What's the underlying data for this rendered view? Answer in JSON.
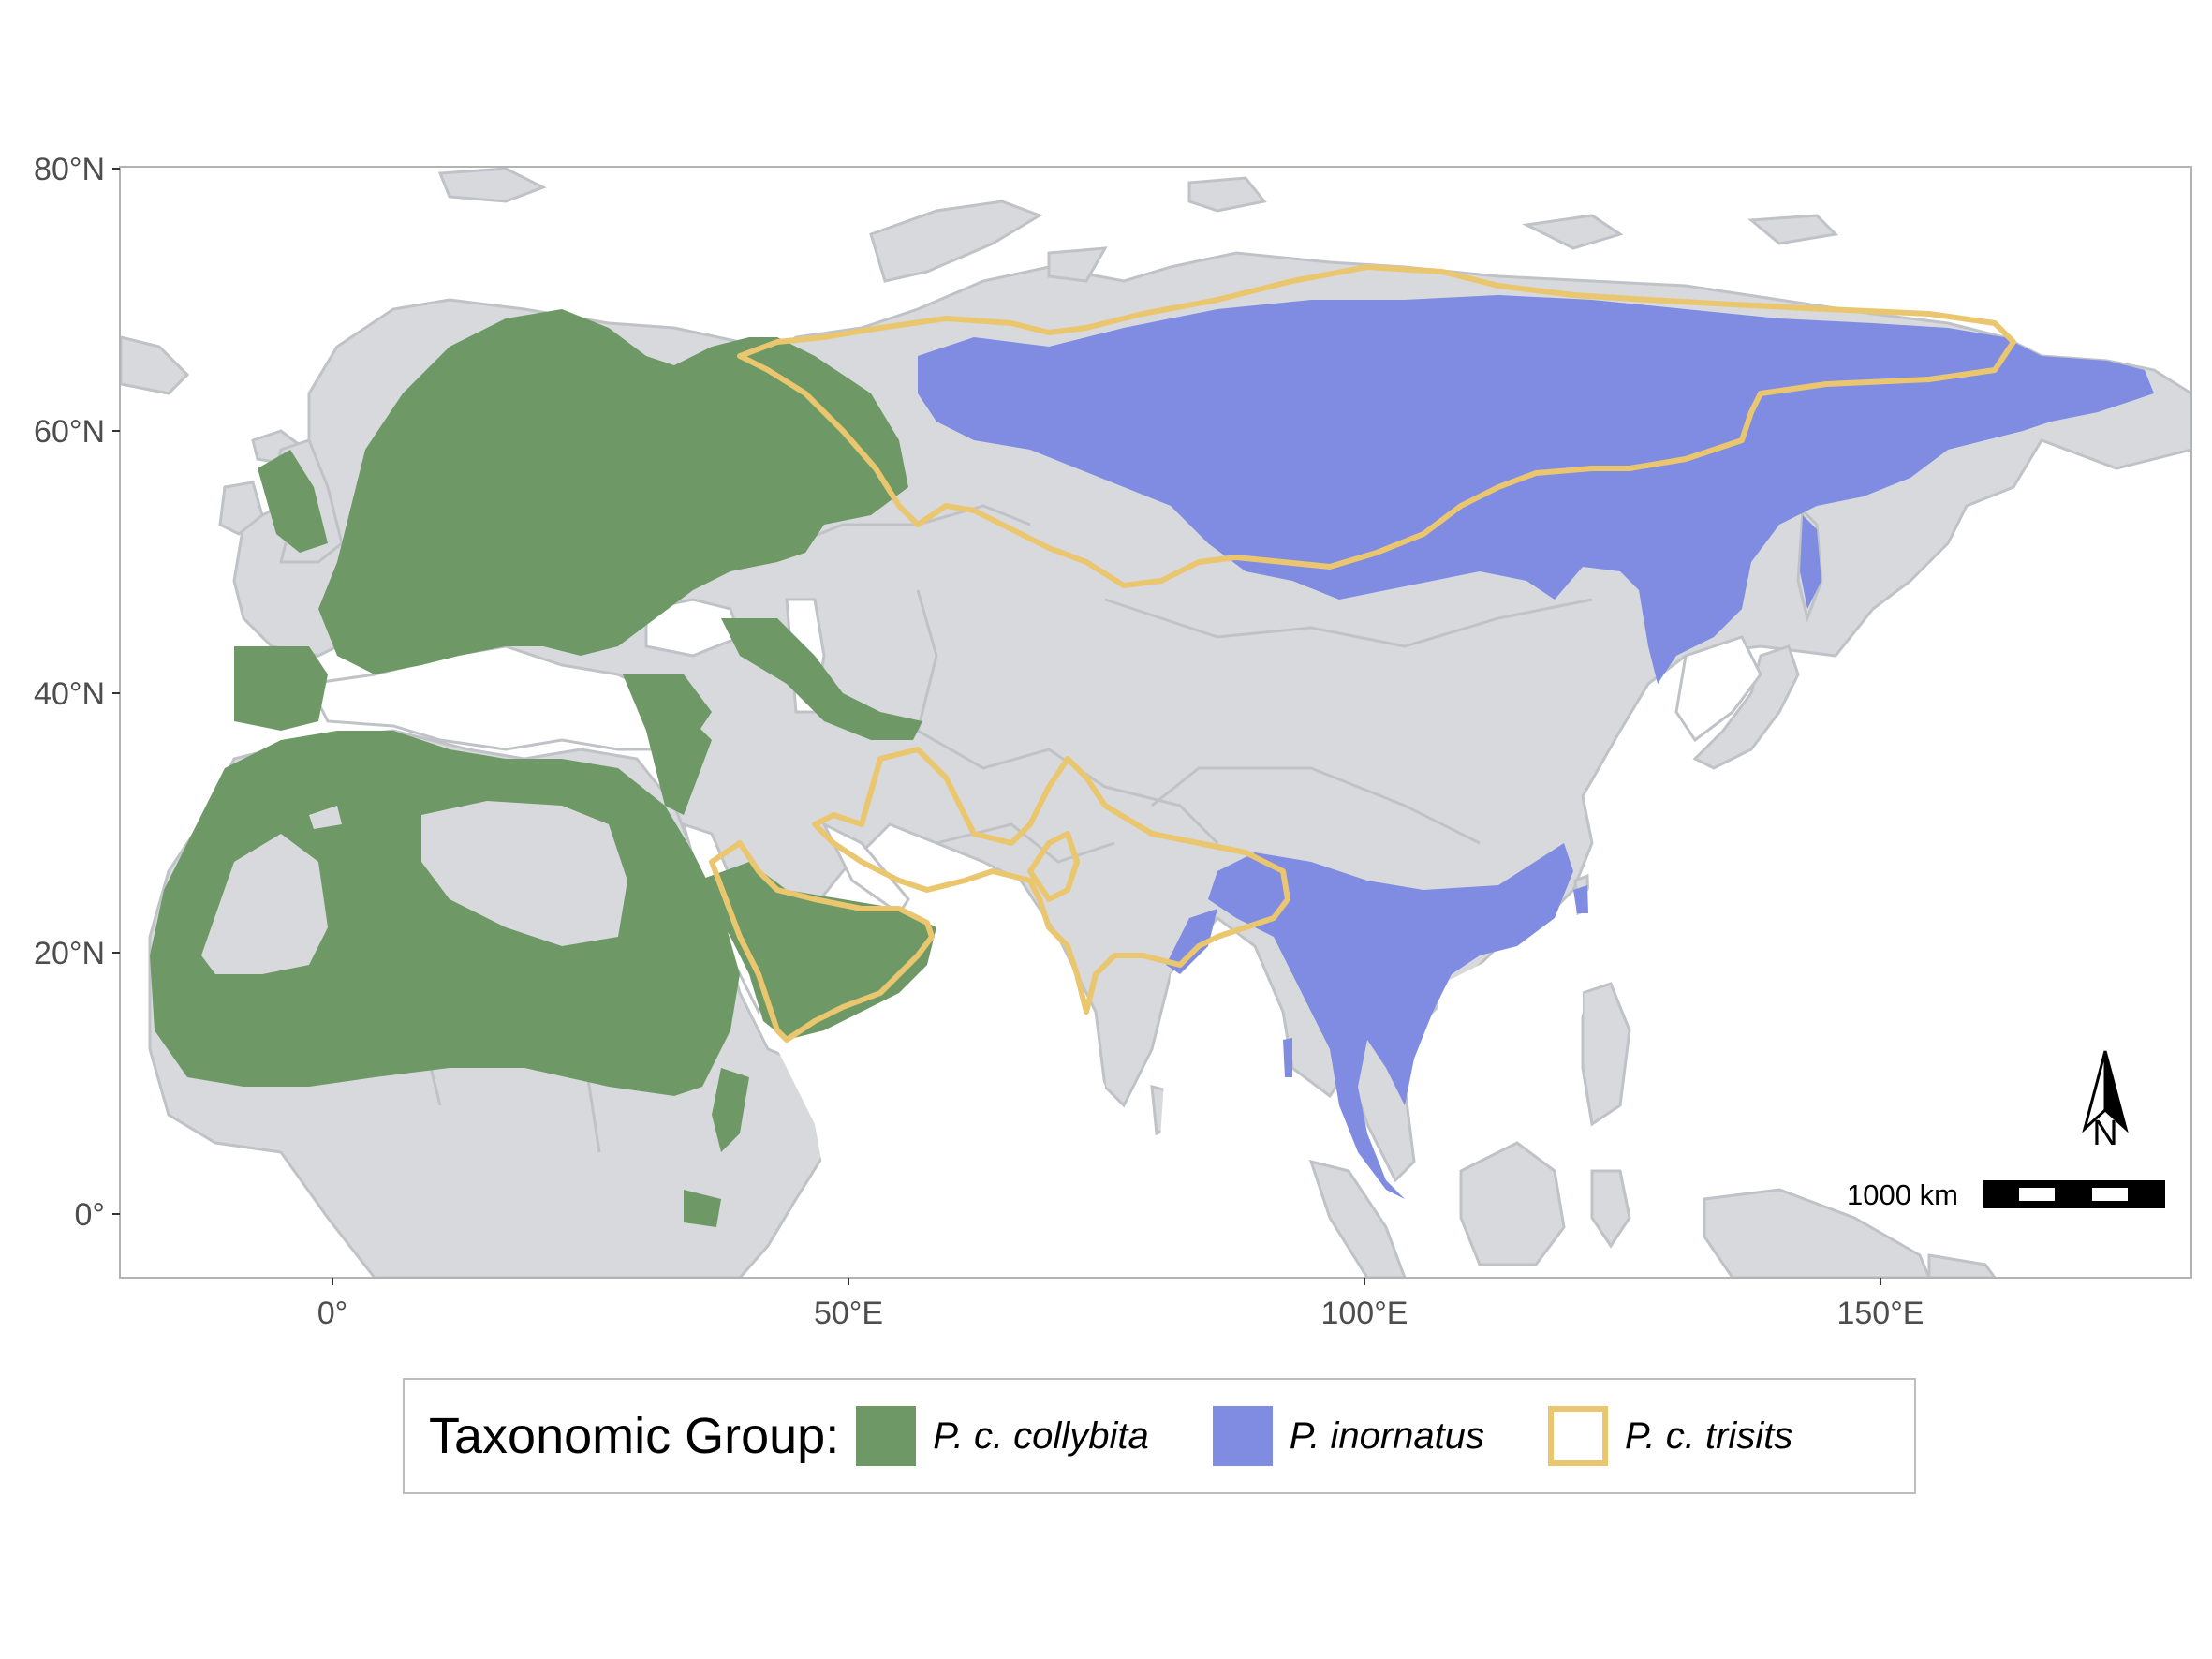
{
  "map": {
    "y_axis_labels": [
      "80°N",
      "60°N",
      "40°N",
      "20°N",
      "0°"
    ],
    "x_axis_labels": [
      "0°",
      "50°E",
      "100°E",
      "150°E"
    ],
    "north_arrow_label": "N",
    "scale_bar_label": "1000 km",
    "colors": {
      "land": "#d7d9dc",
      "border": "#bfc3c7",
      "collybita": "#6e9966",
      "inornatus": "#7f8ce2",
      "tristis": "#eac66f"
    }
  },
  "legend": {
    "title": "Taxonomic Group:",
    "items": [
      {
        "label": "P. c. collybita",
        "style": "fill",
        "color": "#6e9966"
      },
      {
        "label": "P. inornatus",
        "style": "fill",
        "color": "#7f8ce2"
      },
      {
        "label": "P. c. trisits",
        "style": "outline",
        "color": "#eac66f"
      }
    ]
  }
}
